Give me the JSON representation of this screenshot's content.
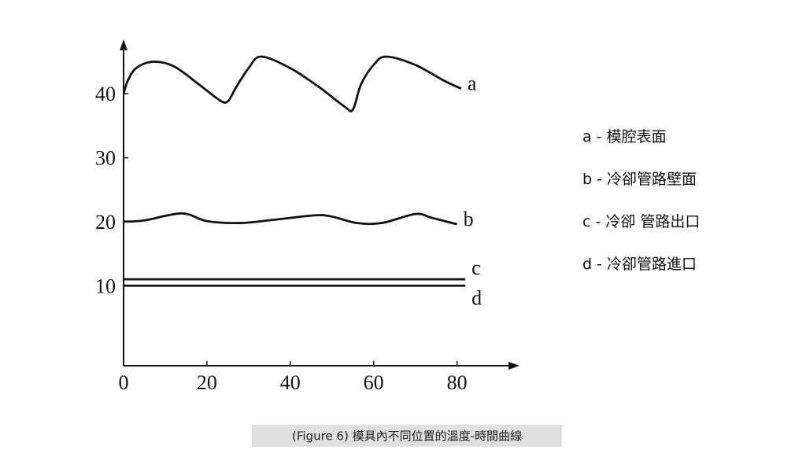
{
  "chart_data": {
    "type": "line",
    "caption": "(Figure 6)  模具內不同位置的溫度-時間曲線",
    "xlim": [
      0,
      95
    ],
    "ylim": [
      -2.5,
      48.5
    ],
    "xticks": [
      0,
      20,
      40,
      60,
      80
    ],
    "yticks": [
      10,
      20,
      30,
      40
    ],
    "series": [
      {
        "name": "a",
        "legend": "a - 模腔表面",
        "color": "#111111",
        "x": [
          0,
          1,
          3,
          7,
          12,
          18,
          23,
          25,
          27,
          30,
          33,
          40,
          47,
          53,
          55,
          57,
          60,
          63,
          70,
          77,
          81
        ],
        "values": [
          40,
          42,
          44,
          45,
          44.3,
          41.5,
          39,
          38.8,
          41,
          44,
          45.8,
          44,
          41,
          38,
          37.5,
          41.5,
          44.5,
          45.8,
          44.5,
          42,
          40.8
        ]
      },
      {
        "name": "b",
        "legend": "b - 冷卻管路壁面",
        "color": "#111111",
        "x": [
          0,
          5,
          14,
          20,
          28,
          36,
          46,
          50,
          56,
          62,
          70,
          74,
          80
        ],
        "values": [
          20,
          20.2,
          21.3,
          20.1,
          19.8,
          20.3,
          21,
          20.8,
          19.8,
          19.8,
          21.2,
          20.6,
          19.6
        ]
      },
      {
        "name": "c",
        "legend": "c - 冷卻 管路出口",
        "color": "#111111",
        "x": [
          0,
          82
        ],
        "values": [
          11,
          11
        ]
      },
      {
        "name": "d",
        "legend": "d - 冷卻管路進口",
        "color": "#111111",
        "x": [
          0,
          82
        ],
        "values": [
          10,
          10
        ]
      }
    ]
  }
}
